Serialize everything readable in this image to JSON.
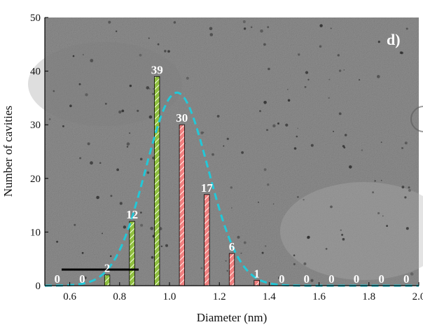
{
  "chart_data": {
    "type": "bar",
    "panel_label": "d)",
    "xlabel": "Diameter (nm)",
    "ylabel": "Number of cavities",
    "xlim": [
      0.5,
      2.0
    ],
    "ylim": [
      0,
      50
    ],
    "x_ticks": [
      "0.6",
      "0.8",
      "1.0",
      "1.2",
      "1.4",
      "1.6",
      "1.8",
      "2.0"
    ],
    "x_tick_values": [
      0.6,
      0.8,
      1.0,
      1.2,
      1.4,
      1.6,
      1.8,
      2.0
    ],
    "y_ticks": [
      "0",
      "10",
      "20",
      "30",
      "40",
      "50"
    ],
    "y_tick_values": [
      0,
      10,
      20,
      30,
      40,
      50
    ],
    "x": [
      0.55,
      0.65,
      0.75,
      0.85,
      0.95,
      1.05,
      1.15,
      1.25,
      1.35,
      1.45,
      1.55,
      1.65,
      1.75,
      1.85,
      1.95
    ],
    "values": [
      0,
      0,
      2,
      12,
      39,
      30,
      17,
      6,
      1,
      0,
      0,
      0,
      0,
      0,
      0
    ],
    "value_labels": [
      "0",
      "0",
      "2",
      "12",
      "39",
      "30",
      "17",
      "6",
      "1",
      "0",
      "0",
      "0",
      "0",
      "0",
      "0"
    ],
    "bar_colors": [
      "#8fbf3f",
      "#8fbf3f",
      "#8fbf3f",
      "#8fbf3f",
      "#8fbf3f",
      "#f08080",
      "#f08080",
      "#f08080",
      "#f08080",
      "#f08080",
      "#f08080",
      "#f08080",
      "#f08080",
      "#f08080",
      "#f08080"
    ],
    "fit_curve": {
      "type": "gaussian",
      "center": 1.03,
      "peak": 36,
      "sigma": 0.125,
      "color": "#22c8d8",
      "style": "dashed"
    },
    "background": "TEM micrograph",
    "grid": false
  }
}
